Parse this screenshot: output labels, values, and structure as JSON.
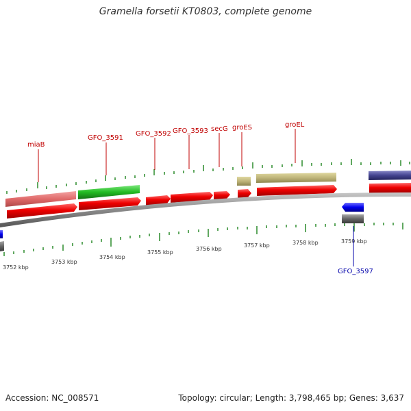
{
  "title": "Gramella forsetii KT0803, complete genome",
  "footer": {
    "accession": "Accession: NC_008571",
    "summary": "Topology: circular; Length: 3,798,465 bp; Genes: 3,637"
  },
  "colors": {
    "gene_label_red": "#c00000",
    "gene_label_blue": "#0000aa",
    "tick_green": "#2a8a2a",
    "backbone_grey": "#8a8a8a"
  },
  "genes": [
    {
      "id": "miaB",
      "label": "miaB"
    },
    {
      "id": "GFO_3591",
      "label": "GFO_3591"
    },
    {
      "id": "GFO_3592",
      "label": "GFO_3592"
    },
    {
      "id": "GFO_3593",
      "label": "GFO_3593"
    },
    {
      "id": "secG",
      "label": "secG"
    },
    {
      "id": "groES",
      "label": "groES"
    },
    {
      "id": "groEL",
      "label": "groEL"
    },
    {
      "id": "GFO_3597",
      "label": "GFO_3597"
    }
  ],
  "scale_labels": [
    "3752 kbp",
    "3753 kbp",
    "3754 kbp",
    "3755 kbp",
    "3756 kbp",
    "3757 kbp",
    "3758 kbp",
    "3759 kbp"
  ]
}
